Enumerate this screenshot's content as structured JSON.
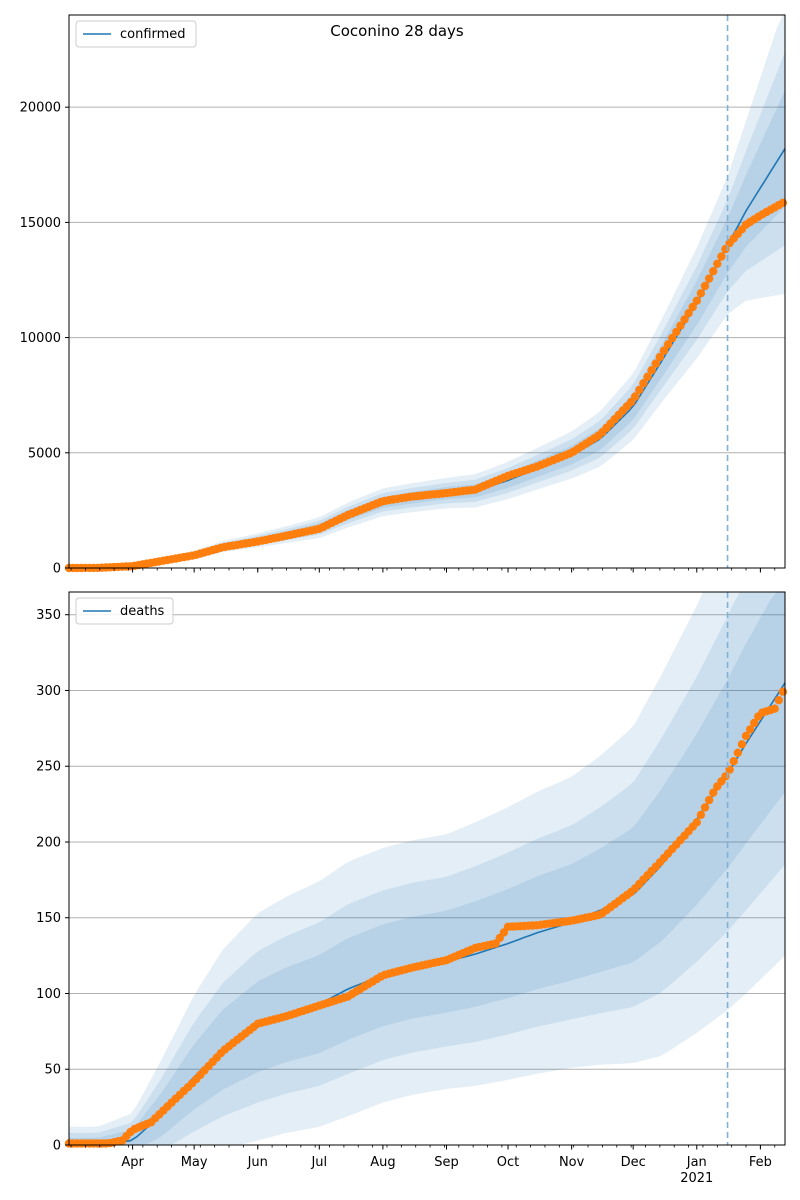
{
  "figure": {
    "title": "Coconino 28 days"
  },
  "chart_data": [
    {
      "type": "line",
      "legend": {
        "label": "confirmed",
        "placement": "top-left"
      },
      "x_tick_labels": [
        "Apr",
        "May",
        "Jun",
        "Jul",
        "Aug",
        "Sep",
        "Oct",
        "Nov",
        "Dec",
        "Jan",
        "Feb"
      ],
      "x_year_label": "2021",
      "xlim": [
        "2020-03-01",
        "2021-02-13"
      ],
      "ylim": [
        0,
        24000
      ],
      "yticks": [
        0,
        5000,
        10000,
        15000,
        20000
      ],
      "grid": "y",
      "forecast_start": "2021-01-16",
      "model": {
        "dates": [
          "2020-03-01",
          "2020-03-15",
          "2020-04-01",
          "2020-04-15",
          "2020-05-01",
          "2020-05-15",
          "2020-06-01",
          "2020-06-15",
          "2020-07-01",
          "2020-07-15",
          "2020-08-01",
          "2020-08-15",
          "2020-09-01",
          "2020-09-15",
          "2020-10-01",
          "2020-10-15",
          "2020-11-01",
          "2020-11-15",
          "2020-12-01",
          "2020-12-15",
          "2021-01-01",
          "2021-01-16",
          "2021-01-25",
          "2021-02-13"
        ],
        "values": [
          0,
          20,
          100,
          330,
          560,
          930,
          1200,
          1450,
          1750,
          2300,
          2850,
          3050,
          3250,
          3350,
          3800,
          4300,
          4900,
          5600,
          7000,
          9000,
          11500,
          14000,
          15500,
          18200
        ],
        "band_spread": [
          0,
          5,
          20,
          40,
          60,
          80,
          100,
          120,
          150,
          180,
          200,
          210,
          220,
          240,
          270,
          300,
          340,
          400,
          480,
          600,
          800,
          1000,
          1300,
          2100
        ]
      },
      "observed": {
        "dates": [
          "2020-03-01",
          "2020-03-15",
          "2020-04-01",
          "2020-04-15",
          "2020-05-01",
          "2020-05-15",
          "2020-06-01",
          "2020-06-15",
          "2020-07-01",
          "2020-07-15",
          "2020-08-01",
          "2020-08-15",
          "2020-09-01",
          "2020-09-15",
          "2020-10-01",
          "2020-10-15",
          "2020-11-01",
          "2020-11-15",
          "2020-12-01",
          "2020-12-15",
          "2021-01-01",
          "2021-01-16",
          "2021-01-25",
          "2021-02-01",
          "2021-02-13"
        ],
        "values": [
          0,
          5,
          80,
          300,
          550,
          900,
          1150,
          1400,
          1700,
          2300,
          2900,
          3100,
          3250,
          3400,
          4000,
          4400,
          5000,
          5800,
          7300,
          9300,
          11600,
          14000,
          14900,
          15300,
          15900
        ]
      }
    },
    {
      "type": "line",
      "legend": {
        "label": "deaths",
        "placement": "top-left"
      },
      "x_tick_labels": [
        "Apr",
        "May",
        "Jun",
        "Jul",
        "Aug",
        "Sep",
        "Oct",
        "Nov",
        "Dec",
        "Jan",
        "Feb"
      ],
      "x_year_label": "2021",
      "xlim": [
        "2020-03-01",
        "2021-02-13"
      ],
      "ylim": [
        0,
        365
      ],
      "yticks": [
        0,
        50,
        100,
        150,
        200,
        250,
        300,
        350
      ],
      "grid": "y",
      "forecast_start": "2021-01-16",
      "model": {
        "dates": [
          "2020-03-01",
          "2020-03-15",
          "2020-04-01",
          "2020-04-15",
          "2020-05-01",
          "2020-05-15",
          "2020-06-01",
          "2020-06-15",
          "2020-07-01",
          "2020-07-15",
          "2020-08-01",
          "2020-08-15",
          "2020-09-01",
          "2020-09-15",
          "2020-10-01",
          "2020-10-15",
          "2020-11-01",
          "2020-11-15",
          "2020-12-01",
          "2020-12-15",
          "2021-01-01",
          "2021-01-16",
          "2021-01-25",
          "2021-02-13"
        ],
        "values": [
          0,
          0,
          3,
          20,
          45,
          63,
          78,
          86,
          93,
          103,
          112,
          117,
          121,
          126,
          133,
          140,
          147,
          155,
          165,
          185,
          215,
          245,
          265,
          305
        ],
        "band_spread": [
          4,
          4,
          6,
          12,
          18,
          22,
          25,
          26,
          27,
          28,
          28,
          28,
          28,
          29,
          30,
          31,
          32,
          34,
          37,
          42,
          47,
          52,
          55,
          60
        ]
      },
      "observed": {
        "dates": [
          "2020-03-01",
          "2020-03-20",
          "2020-03-27",
          "2020-04-01",
          "2020-04-10",
          "2020-04-20",
          "2020-05-01",
          "2020-05-15",
          "2020-06-01",
          "2020-06-15",
          "2020-07-01",
          "2020-07-15",
          "2020-08-01",
          "2020-08-15",
          "2020-09-01",
          "2020-09-15",
          "2020-09-25",
          "2020-10-01",
          "2020-10-15",
          "2020-11-01",
          "2020-11-15",
          "2020-12-01",
          "2020-12-15",
          "2021-01-01",
          "2021-01-10",
          "2021-01-16",
          "2021-01-25",
          "2021-02-01",
          "2021-02-08",
          "2021-02-13"
        ],
        "values": [
          1,
          1,
          3,
          10,
          15,
          28,
          42,
          62,
          80,
          85,
          92,
          98,
          112,
          117,
          122,
          130,
          133,
          144,
          145,
          148,
          152,
          168,
          188,
          213,
          235,
          245,
          270,
          285,
          288,
          302
        ]
      }
    }
  ],
  "colors": {
    "model": "#1f77b4",
    "observed": "#ff7f0e",
    "band": "#1f77b4",
    "grid": "#b0b0b0",
    "forecast_line": "#7fb2d6"
  }
}
